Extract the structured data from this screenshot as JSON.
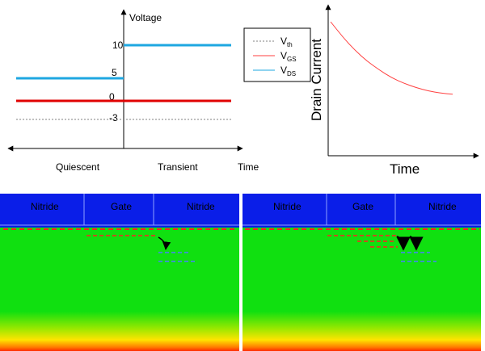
{
  "voltage_chart": {
    "ylabel": "Voltage",
    "xlabel": "Time",
    "phase_labels": [
      "Quiescent",
      "Transient"
    ],
    "tick_labels": [
      "10",
      "5",
      "0",
      "-3"
    ],
    "legend": {
      "vth": {
        "base": "V",
        "sub": "th"
      },
      "vgs": {
        "base": "V",
        "sub": "GS"
      },
      "vds": {
        "base": "V",
        "sub": "DS"
      }
    },
    "colors": {
      "vth": "#808080",
      "vgs": "#ff0000",
      "vds": "#1ea7e1"
    }
  },
  "chart_data": {
    "type": "line",
    "title": "",
    "xlabel": "Time",
    "ylabel": "Drain Current",
    "grid": false,
    "series": [
      {
        "values": [
          1.0,
          0.86,
          0.74,
          0.64,
          0.56,
          0.49,
          0.44,
          0.4,
          0.37,
          0.35,
          0.34
        ]
      }
    ]
  },
  "device_left": {
    "labels": [
      "Nitride",
      "Gate",
      "Nitride"
    ],
    "arrows": 1
  },
  "device_right": {
    "labels": [
      "Nitride",
      "Gate",
      "Nitride"
    ],
    "arrows": 2
  },
  "colors": {
    "nitride": "#0a1ee8",
    "substrate": "#10e010",
    "trap_electron": "#ff2020",
    "trap_empty": "#4a7dff"
  }
}
